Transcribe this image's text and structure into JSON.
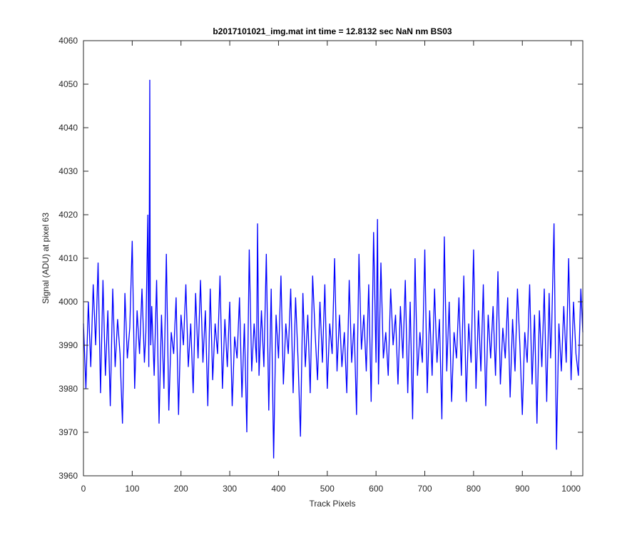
{
  "chart_data": {
    "type": "line",
    "title": "b2017101021_img.mat int time = 12.8132 sec  NaN nm BS03",
    "xlabel": "Track Pixels",
    "ylabel": "Signal (ADU) at pixel 63",
    "xlim": [
      0,
      1024
    ],
    "ylim": [
      3960,
      4060
    ],
    "xticks": [
      "0",
      "100",
      "200",
      "300",
      "400",
      "500",
      "600",
      "700",
      "800",
      "900",
      "1000"
    ],
    "yticks": [
      "3960",
      "3970",
      "3980",
      "3990",
      "4000",
      "4010",
      "4020",
      "4030",
      "4040",
      "4050",
      "4060"
    ],
    "grid": false,
    "line_color": "#0000ff",
    "series": [
      {
        "x": [
          0,
          5,
          10,
          15,
          20,
          25,
          30,
          35,
          40,
          45,
          50,
          55,
          60,
          65,
          70,
          75,
          80,
          85,
          90,
          95,
          100,
          105,
          110,
          115,
          120,
          125,
          128,
          132,
          134,
          136,
          137,
          138,
          140,
          145,
          150,
          155,
          160,
          165,
          170,
          175,
          180,
          185,
          190,
          195,
          200,
          205,
          210,
          215,
          220,
          225,
          230,
          235,
          240,
          245,
          250,
          255,
          260,
          265,
          270,
          275,
          280,
          285,
          290,
          295,
          300,
          305,
          310,
          315,
          320,
          325,
          330,
          335,
          340,
          345,
          350,
          355,
          357,
          360,
          365,
          370,
          375,
          380,
          385,
          390,
          395,
          400,
          405,
          410,
          415,
          420,
          425,
          430,
          435,
          440,
          445,
          450,
          455,
          460,
          465,
          470,
          475,
          480,
          485,
          490,
          495,
          500,
          505,
          510,
          515,
          520,
          525,
          530,
          535,
          540,
          545,
          550,
          555,
          560,
          565,
          570,
          575,
          580,
          585,
          590,
          595,
          600,
          603,
          605,
          610,
          615,
          620,
          625,
          630,
          635,
          640,
          645,
          650,
          655,
          660,
          665,
          670,
          675,
          680,
          685,
          690,
          695,
          700,
          705,
          710,
          715,
          720,
          725,
          730,
          735,
          740,
          745,
          750,
          755,
          760,
          765,
          770,
          775,
          780,
          785,
          790,
          795,
          800,
          805,
          810,
          815,
          820,
          825,
          830,
          835,
          840,
          845,
          850,
          855,
          860,
          865,
          870,
          875,
          880,
          885,
          890,
          895,
          900,
          905,
          910,
          915,
          920,
          925,
          930,
          935,
          940,
          945,
          950,
          955,
          958,
          960,
          965,
          970,
          975,
          980,
          985,
          990,
          995,
          1000,
          1005,
          1010,
          1015,
          1020,
          1024
        ],
        "y": [
          3995,
          3980,
          4000,
          3985,
          4004,
          3990,
          4009,
          3979,
          4005,
          3983,
          3998,
          3976,
          4003,
          3985,
          3996,
          3988,
          3972,
          4002,
          3987,
          3994,
          4014,
          3980,
          3998,
          3988,
          4003,
          3986,
          3993,
          4020,
          3985,
          4051,
          3998,
          3990,
          3999,
          3983,
          4005,
          3972,
          3997,
          3980,
          4011,
          3975,
          3993,
          3988,
          4001,
          3974,
          3997,
          3990,
          4004,
          3985,
          3995,
          3979,
          4002,
          3987,
          4005,
          3986,
          3998,
          3976,
          4003,
          3982,
          3995,
          3988,
          4006,
          3980,
          3996,
          3985,
          4000,
          3976,
          3992,
          3987,
          4001,
          3978,
          3995,
          3970,
          4012,
          3984,
          3995,
          3986,
          4018,
          3983,
          3998,
          3985,
          4011,
          3975,
          4003,
          3964,
          3997,
          3987,
          4006,
          3981,
          3995,
          3988,
          4003,
          3979,
          4001,
          3987,
          3969,
          4002,
          3985,
          3997,
          3979,
          4006,
          3993,
          3982,
          4000,
          3986,
          4004,
          3980,
          3995,
          3988,
          4010,
          3984,
          3997,
          3985,
          3993,
          3979,
          4005,
          3986,
          3995,
          3974,
          4011,
          3989,
          3997,
          3984,
          4004,
          3977,
          4016,
          3986,
          4019,
          3981,
          4009,
          3987,
          3993,
          3983,
          4003,
          3990,
          3997,
          3981,
          3999,
          3987,
          4005,
          3979,
          4000,
          3973,
          4010,
          3983,
          3993,
          3986,
          4012,
          3979,
          3998,
          3983,
          4003,
          3986,
          3996,
          3973,
          4015,
          3984,
          4000,
          3977,
          3993,
          3987,
          4001,
          3983,
          4006,
          3977,
          3995,
          3986,
          4012,
          3980,
          3998,
          3984,
          4004,
          3976,
          3997,
          3987,
          3999,
          3983,
          4007,
          3981,
          3994,
          3987,
          4001,
          3978,
          3996,
          3984,
          4003,
          3990,
          3974,
          3993,
          3986,
          4004,
          3981,
          3997,
          3972,
          3998,
          3985,
          4003,
          3977,
          4002,
          3987,
          3993,
          4018,
          3966,
          3995,
          3984,
          3999,
          3986,
          4010,
          3982,
          4000,
          3988,
          3983,
          4003,
          3993
        ]
      }
    ]
  }
}
